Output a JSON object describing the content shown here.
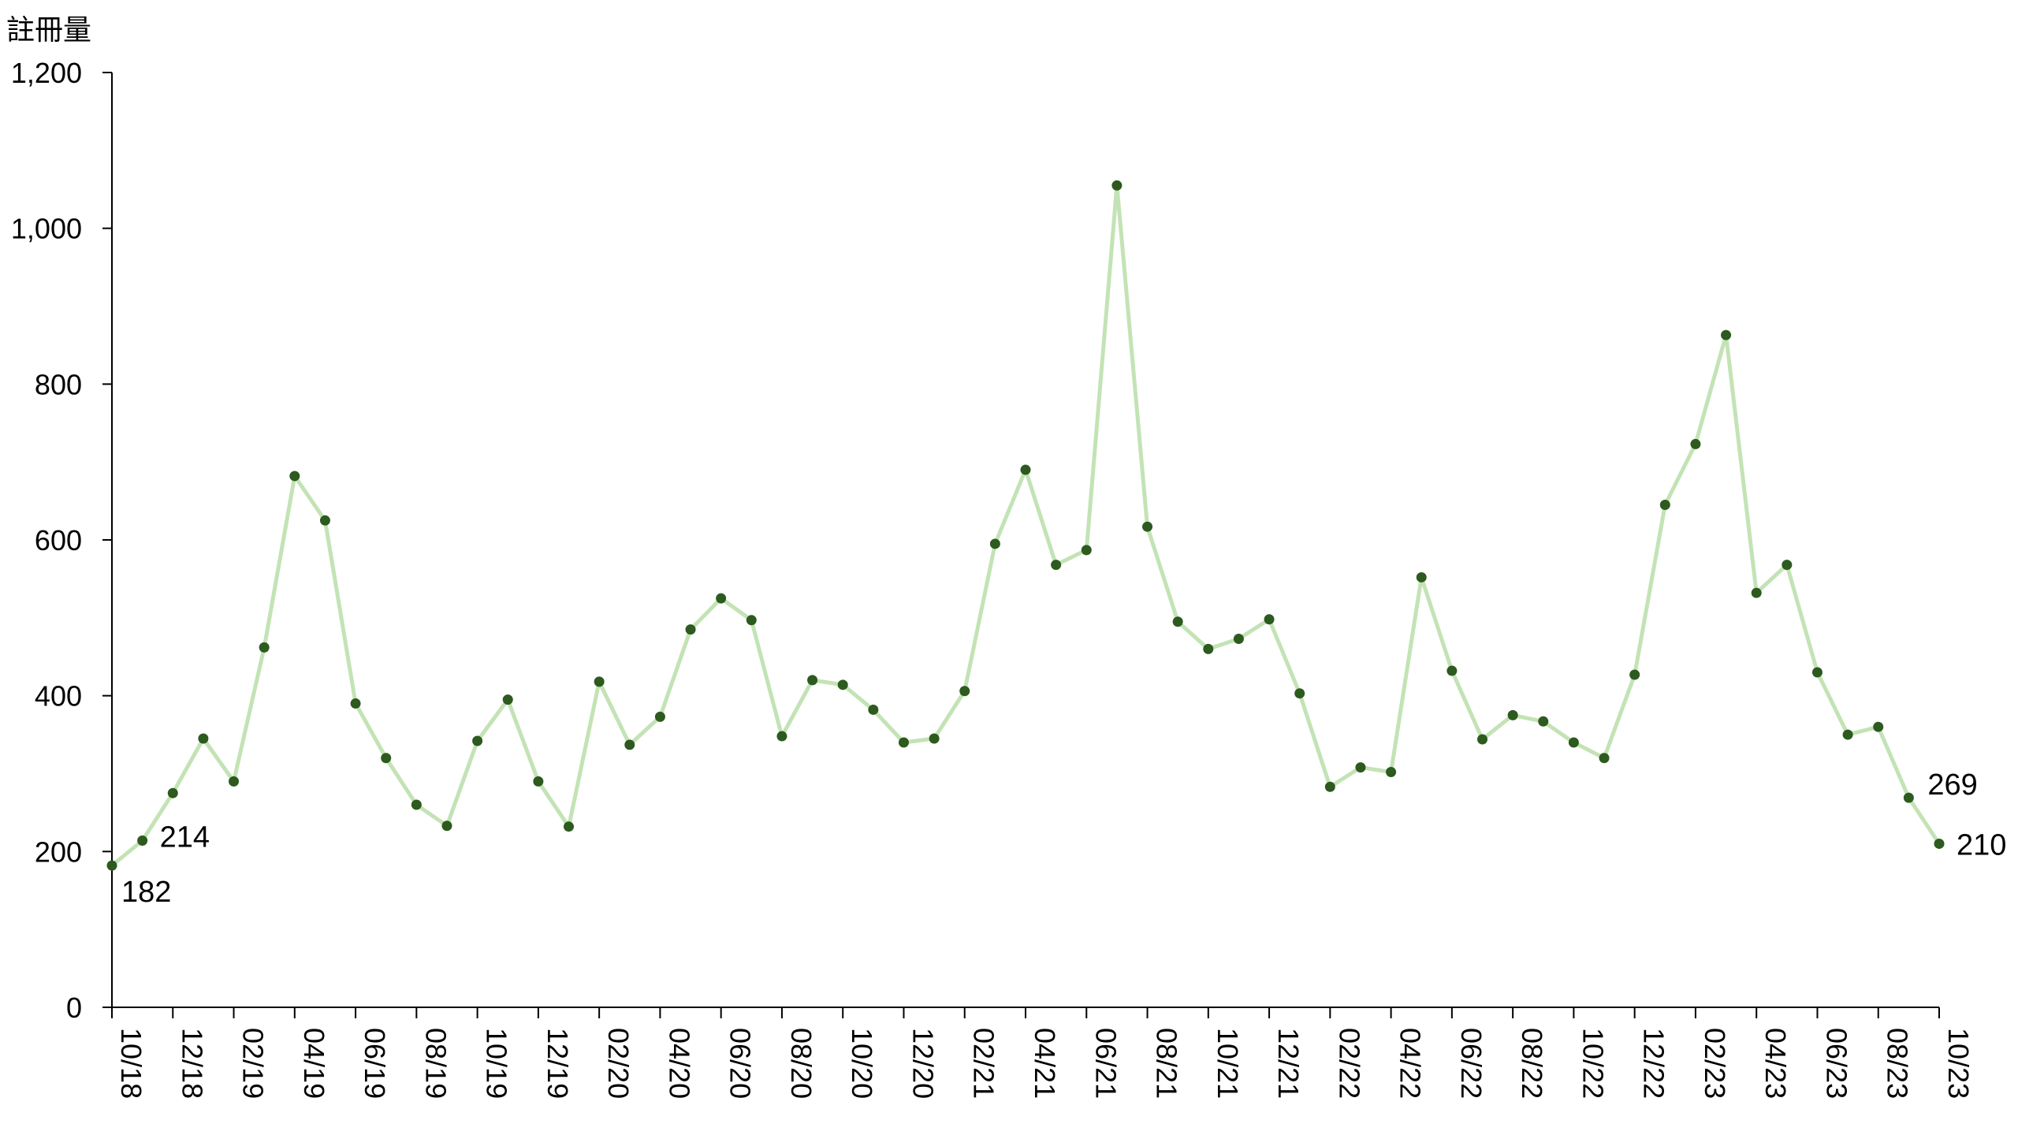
{
  "chart_data": {
    "type": "line",
    "ylabel": "註冊量",
    "xlabel": "",
    "title": "",
    "ylim": [
      0,
      1200
    ],
    "yticks": [
      0,
      200,
      400,
      600,
      800,
      1000,
      1200
    ],
    "ytick_labels": [
      "0",
      "200",
      "400",
      "600",
      "800",
      "1,000",
      "1,200"
    ],
    "xtick_labels": [
      "10/18",
      "12/18",
      "02/19",
      "04/19",
      "06/19",
      "08/19",
      "10/19",
      "12/19",
      "02/20",
      "04/20",
      "06/20",
      "08/20",
      "10/20",
      "12/20",
      "02/21",
      "04/21",
      "06/21",
      "08/21",
      "10/21",
      "12/21",
      "02/22",
      "04/22",
      "06/22",
      "08/22",
      "10/22",
      "12/22",
      "02/23",
      "04/23",
      "06/23",
      "08/23",
      "10/23"
    ],
    "x": [
      "10/18",
      "11/18",
      "12/18",
      "01/19",
      "02/19",
      "03/19",
      "04/19",
      "05/19",
      "06/19",
      "07/19",
      "08/19",
      "09/19",
      "10/19",
      "11/19",
      "12/19",
      "01/20",
      "02/20",
      "03/20",
      "04/20",
      "05/20",
      "06/20",
      "07/20",
      "08/20",
      "09/20",
      "10/20",
      "11/20",
      "12/20",
      "01/21",
      "02/21",
      "03/21",
      "04/21",
      "05/21",
      "06/21",
      "07/21",
      "08/21",
      "09/21",
      "10/21",
      "11/21",
      "12/21",
      "01/22",
      "02/22",
      "03/22",
      "04/22",
      "05/22",
      "06/22",
      "07/22",
      "08/22",
      "09/22",
      "10/22",
      "11/22",
      "12/22",
      "01/23",
      "02/23",
      "03/23",
      "04/23",
      "05/23",
      "06/23",
      "07/23",
      "08/23",
      "09/23",
      "10/23"
    ],
    "series": [
      {
        "values": [
          182,
          214,
          275,
          345,
          290,
          462,
          682,
          625,
          390,
          320,
          260,
          233,
          342,
          395,
          290,
          232,
          418,
          337,
          373,
          485,
          525,
          497,
          348,
          420,
          414,
          382,
          340,
          345,
          406,
          595,
          690,
          568,
          587,
          1055,
          617,
          495,
          460,
          473,
          498,
          403,
          283,
          308,
          302,
          552,
          432,
          344,
          375,
          367,
          340,
          320,
          427,
          645,
          723,
          863,
          532,
          568,
          430,
          350,
          360,
          269,
          210
        ],
        "point_labels": {
          "0": "182",
          "1": "214",
          "59": "269",
          "60": "210"
        },
        "line_color": "#c3e3b5",
        "marker_color": "#2d5a1e"
      }
    ],
    "grid": false,
    "legend": "none"
  }
}
